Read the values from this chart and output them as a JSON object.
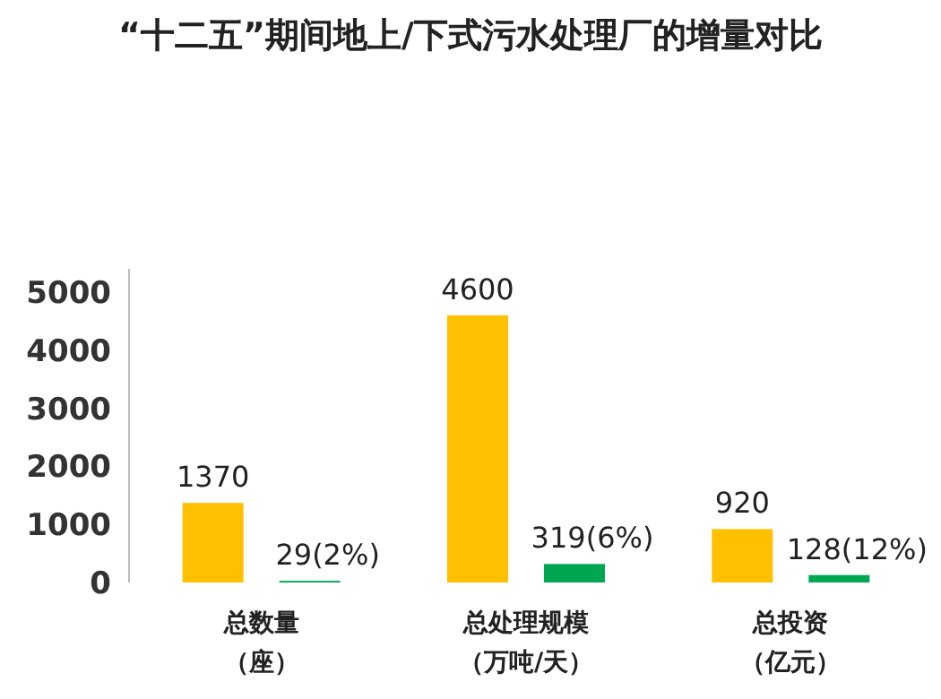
{
  "chart_data": {
    "type": "bar",
    "title": "“十二五”期间地上/下式污水处理厂的增量对比",
    "categories": [
      "总数量（座）",
      "总处理规模（万吨/天）",
      "总投资（亿元）"
    ],
    "series": [
      {
        "color": "#ffc000",
        "values": [
          1370,
          4600,
          920
        ],
        "value_labels": [
          "1370",
          "4600",
          "920"
        ]
      },
      {
        "color": "#00a651",
        "values": [
          29,
          319,
          128
        ],
        "value_labels": [
          "29(2%)",
          "319(6%)",
          "128(12%)"
        ]
      }
    ],
    "ylim": [
      0,
      5400
    ],
    "yticks": [
      0,
      1000,
      2000,
      3000,
      4000,
      5000
    ]
  }
}
